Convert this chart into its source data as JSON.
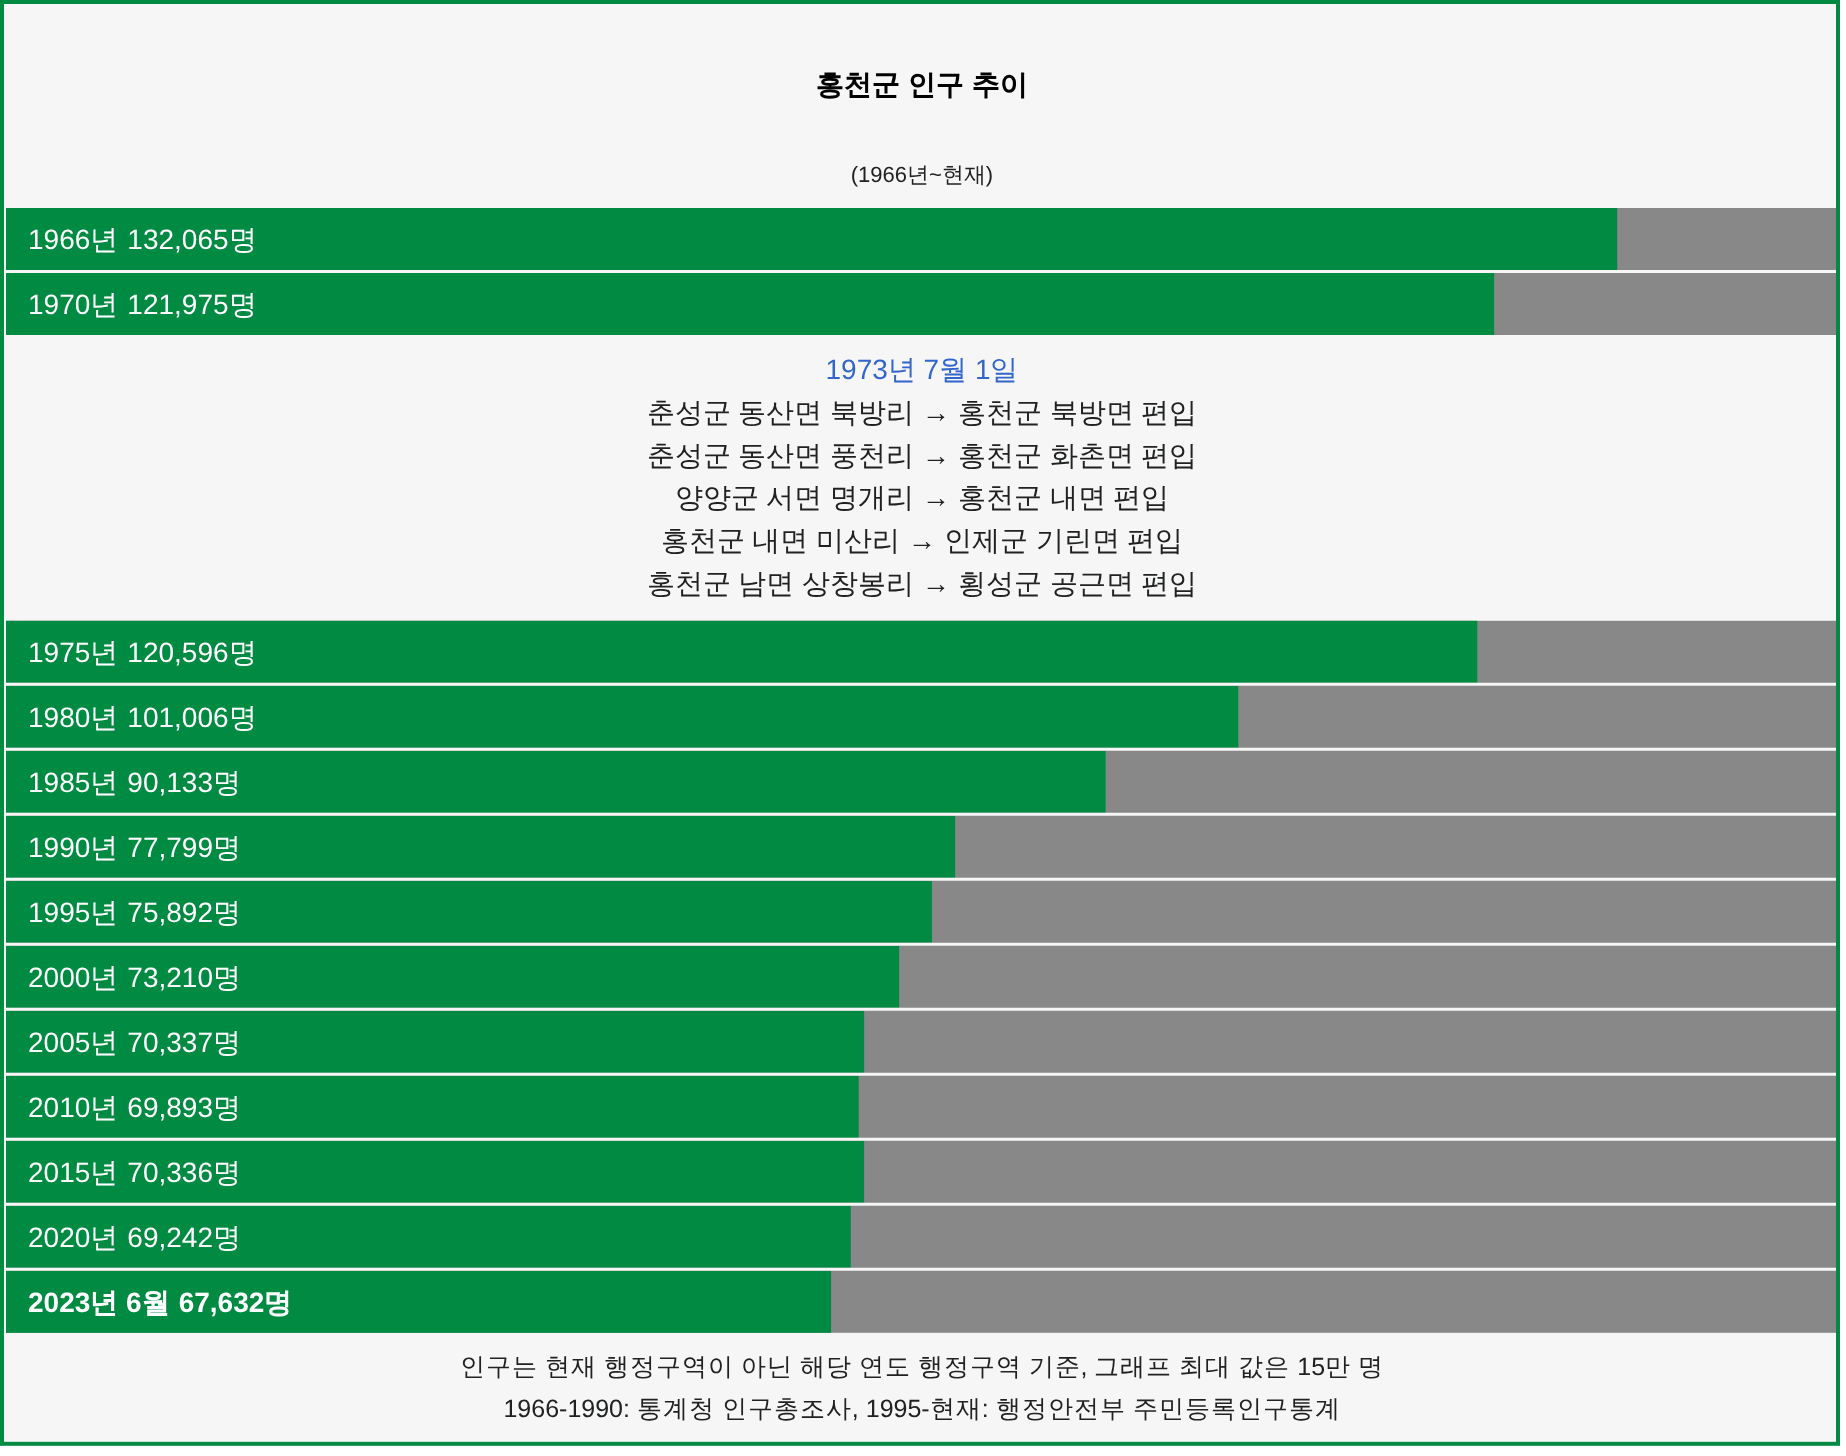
{
  "chart_data": [
    {
      "type": "bar",
      "orientation": "horizontal",
      "title": "홍천군 인구 추이",
      "subtitle": "(1966년~현재)",
      "categories": [
        "1966년",
        "1970년"
      ],
      "values": [
        132065,
        121975
      ],
      "value_labels": [
        "132,065명",
        "121,975명"
      ],
      "color": "#008a42",
      "xlim": [
        0,
        150000
      ],
      "annotations": [
        "1973년 7월 1일",
        "춘성군 동산면 북방리 → 홍천군 북방면 편입",
        "춘성군 동산면 풍천리 → 홍천군 화촌면 편입",
        "양양군 서면 명개리 → 홍천군 내면 편입",
        "홍천군 내면 미산리 → 인제군 기린면 편입",
        "홍천군 남면 상창봉리 → 횡성군 공근면 편입"
      ]
    },
    {
      "type": "bar",
      "orientation": "horizontal",
      "categories": [
        "1975년",
        "1980년",
        "1985년",
        "1990년",
        "1995년",
        "2000년",
        "2005년",
        "2010년",
        "2015년",
        "2020년",
        "2023년 6월"
      ],
      "values": [
        120596,
        101006,
        90133,
        77799,
        75892,
        73210,
        70337,
        69893,
        70336,
        69242,
        67632
      ],
      "value_labels": [
        "120,596명",
        "101,006명",
        "90,133명",
        "77,799명",
        "75,892명",
        "73,210명",
        "70,337명",
        "69,893명",
        "70,336명",
        "69,242명",
        "67,632명"
      ],
      "color": "#008a42",
      "xlim": [
        0,
        150000
      ],
      "annotations": [
        "인구는 현재 행정구역이 아닌 해당 연도 행정구역 기준, 그래프 최대 값은 15만 명",
        "1966-1990: 통계청 인구총조사, 1995-현재: 행정안전부 주민등록인구통계"
      ]
    }
  ]
}
